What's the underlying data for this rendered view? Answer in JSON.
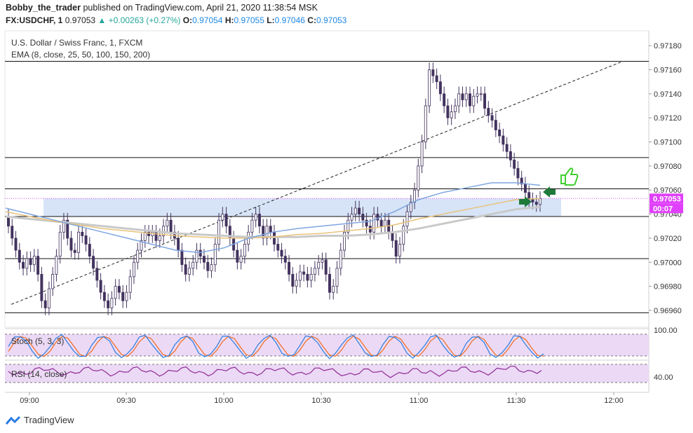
{
  "header": {
    "author": "Bobby_the_trader",
    "published_text": "published on TradingView.com, April 21, 2020 11:38:54 MSK",
    "symbol": "FX:USDCHF, 1",
    "last": "0.97053",
    "change": "+0.00263 (+0.27%)",
    "o_label": "O:",
    "o": "0.97054",
    "h_label": "H:",
    "h": "0.97055",
    "l_label": "L:",
    "l": "0.97046",
    "c_label": "C:",
    "c": "0.97053"
  },
  "legend": {
    "title": "U.S. Dollar / Swiss Franc, 1, FXCM",
    "ema": "EMA (8, close, 25, 50, 100, 150, 200)",
    "stoch": "Stoch (5, 3, 3)",
    "rsi": "RSI (14, close)"
  },
  "price_axis": {
    "ticks": [
      "0.97180",
      "0.97160",
      "0.97140",
      "0.97120",
      "0.97100",
      "0.97080",
      "0.97060",
      "0.97040",
      "0.97020",
      "0.97000",
      "0.96980",
      "0.96960"
    ],
    "price_tag": "0.97053",
    "time_tag": "00:07",
    "stoch_tick": "100.00",
    "rsi_tick": "40.00"
  },
  "time_axis": [
    "09:00",
    "09:30",
    "10:00",
    "10:30",
    "11:00",
    "11:30",
    "12:00"
  ],
  "colors": {
    "up": "#ffffff",
    "down": "#43335e",
    "wick": "#43335e",
    "ema_blue": "#7fa6e0",
    "ema_orange": "#e8c27a",
    "ema_gray": "#c9c9c9",
    "zone": "#d7e4f7",
    "osc_bg": "#ecd9f5",
    "stoch_k": "#2a7de1",
    "stoch_d": "#f26a1b",
    "rsi": "#8e2c96",
    "price_tag": "#e040fb",
    "thumb": "#3ecf2e",
    "arrow": "#1f7a3a"
  },
  "icons": [
    "thumbs-up-icon",
    "arrow-right-icon",
    "arrow-left-icon",
    "tradingview-logo-icon"
  ],
  "footer": {
    "brand": "TradingView"
  },
  "chart_data": {
    "type": "candlestick",
    "timeframe": "1 minute",
    "ylim": [
      0.96946,
      0.9719
    ],
    "horizontal_levels": [
      0.97167,
      0.97087,
      0.97061,
      0.97038,
      0.97003,
      0.96958
    ],
    "zone": [
      0.97038,
      0.97053
    ],
    "trendline": {
      "from": [
        "08:56",
        0.96965
      ],
      "to": [
        "12:05",
        0.97167
      ]
    },
    "candles_close": [
      0.9703,
      0.9702,
      0.9701,
      0.97,
      0.96995,
      0.97003,
      0.96998,
      0.97005,
      0.9699,
      0.96968,
      0.96962,
      0.96978,
      0.9699,
      0.97005,
      0.97025,
      0.97035,
      0.9702,
      0.9701,
      0.97008,
      0.97025,
      0.97022,
      0.97015,
      0.97005,
      0.96995,
      0.96985,
      0.96975,
      0.96968,
      0.96962,
      0.9697,
      0.9698,
      0.96975,
      0.96968,
      0.96975,
      0.96988,
      0.97,
      0.9701,
      0.97018,
      0.97025,
      0.97022,
      0.97025,
      0.97018,
      0.97022,
      0.9703,
      0.97035,
      0.97025,
      0.9702,
      0.9701,
      0.96998,
      0.9699,
      0.96995,
      0.97,
      0.9701,
      0.97005,
      0.97,
      0.96993,
      0.96998,
      0.97015,
      0.97035,
      0.9704,
      0.9703,
      0.9702,
      0.9701,
      0.97,
      0.97005,
      0.97015,
      0.97025,
      0.97035,
      0.9704,
      0.9703,
      0.9702,
      0.9703,
      0.97025,
      0.97015,
      0.9701,
      0.97005,
      0.97,
      0.9699,
      0.9698,
      0.96985,
      0.96992,
      0.9699,
      0.96985,
      0.9699,
      0.96995,
      0.97,
      0.97002,
      0.9699,
      0.96975,
      0.9698,
      0.96995,
      0.9701,
      0.97025,
      0.97035,
      0.9704,
      0.97045,
      0.9704,
      0.97035,
      0.9703,
      0.97025,
      0.9704,
      0.97035,
      0.9703,
      0.97035,
      0.97025,
      0.97018,
      0.97005,
      0.97015,
      0.9703,
      0.97042,
      0.9705,
      0.9706,
      0.9708,
      0.971,
      0.9713,
      0.9716,
      0.97155,
      0.9715,
      0.9714,
      0.9713,
      0.9712,
      0.97125,
      0.9713,
      0.9714,
      0.97135,
      0.9714,
      0.9713,
      0.97138,
      0.9714,
      0.9714,
      0.97128,
      0.97122,
      0.97118,
      0.9711,
      0.97105,
      0.97098,
      0.97092,
      0.97085,
      0.97078,
      0.9707,
      0.97065,
      0.97058,
      0.97052,
      0.9705,
      0.97048,
      0.97053
    ],
    "ema_fast": [
      0.97045,
      0.9704,
      0.97035,
      0.9703,
      0.97025,
      0.9702,
      0.97015,
      0.9701,
      0.97008,
      0.97012,
      0.9702,
      0.97025,
      0.97028,
      0.9703,
      0.97032,
      0.97034,
      0.97042,
      0.97052,
      0.97058,
      0.97062,
      0.97066,
      0.97066,
      0.97064
    ],
    "ema_mid": [
      0.97042,
      0.97038,
      0.97034,
      0.97031,
      0.97028,
      0.97026,
      0.97024,
      0.97022,
      0.97021,
      0.9702,
      0.9702,
      0.97021,
      0.97023,
      0.97024,
      0.97026,
      0.97028,
      0.97031,
      0.97036,
      0.9704,
      0.97044,
      0.97048,
      0.97052,
      0.97053
    ],
    "ema_slow": [
      0.97038,
      0.97036,
      0.97034,
      0.97032,
      0.9703,
      0.97028,
      0.97026,
      0.97024,
      0.97023,
      0.97022,
      0.97021,
      0.97021,
      0.97021,
      0.97022,
      0.97022,
      0.97023,
      0.97025,
      0.97028,
      0.97032,
      0.97036,
      0.9704,
      0.97044,
      0.97046
    ],
    "stoch": {
      "ylim": [
        0,
        100
      ],
      "tick": 100
    },
    "rsi": {
      "ylim": [
        20,
        80
      ],
      "tick": 40
    }
  }
}
